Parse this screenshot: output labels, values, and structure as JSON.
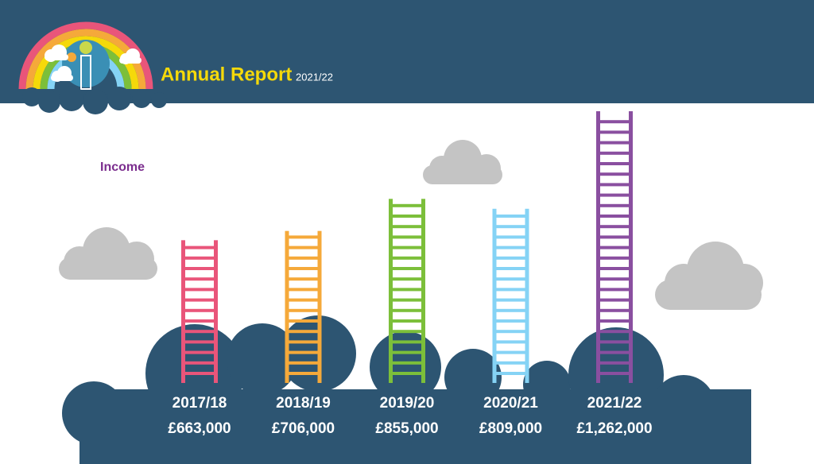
{
  "header": {
    "title": "Annual Report",
    "subtitle": "2021/22"
  },
  "chart_data": {
    "type": "bar",
    "title": "Income",
    "categories": [
      "2017/18",
      "2018/19",
      "2019/20",
      "2020/21",
      "2021/22"
    ],
    "values": [
      663000,
      706000,
      855000,
      809000,
      1262000
    ],
    "value_labels": [
      "£663,000",
      "£706,000",
      "£855,000",
      "£809,000",
      "£1,262,000"
    ],
    "colors": [
      "#e9557a",
      "#f5a93a",
      "#7cbf3a",
      "#85d3f5",
      "#8a4fa0"
    ]
  }
}
